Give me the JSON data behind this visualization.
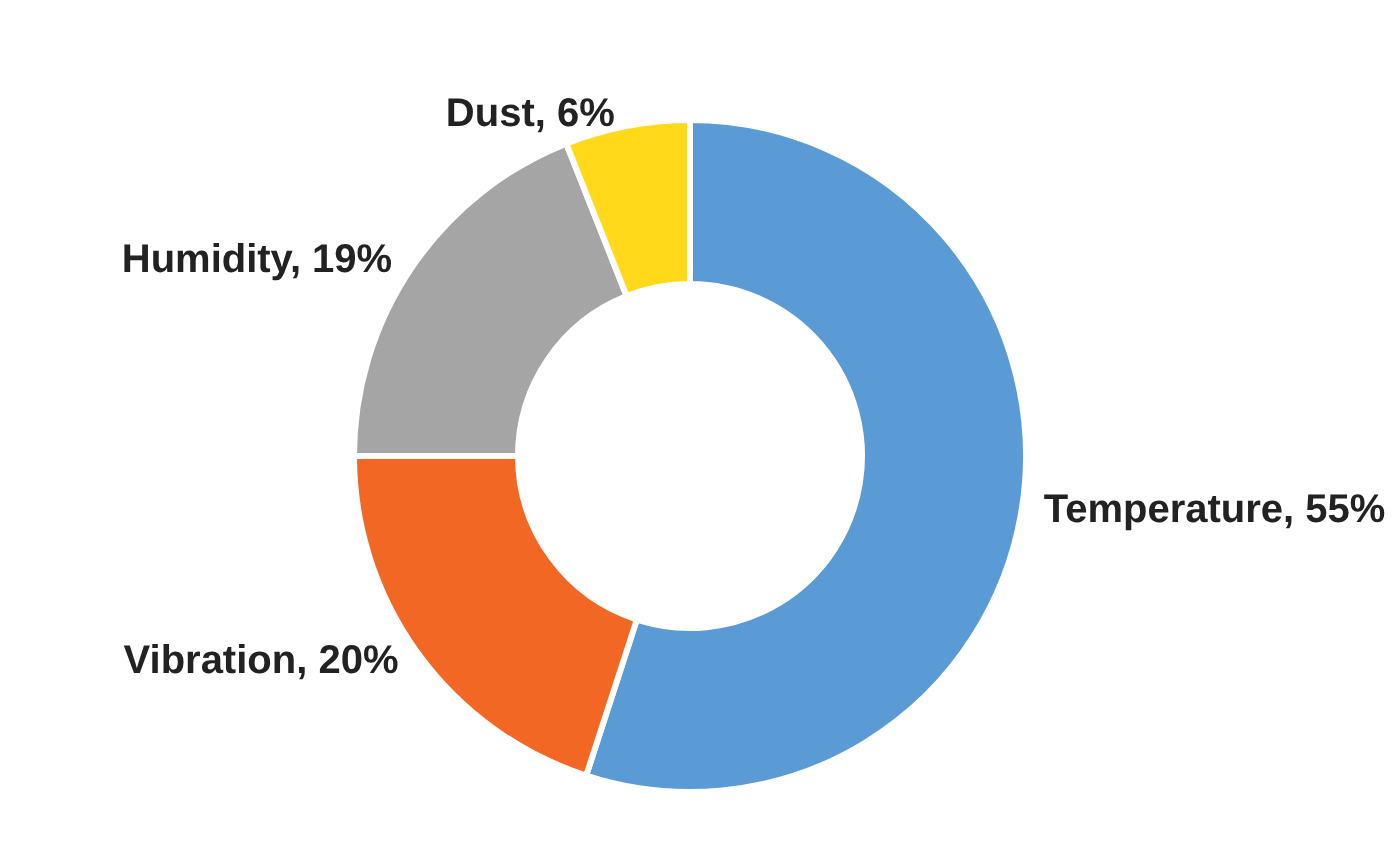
{
  "chart_data": {
    "type": "donut",
    "categories": [
      "Temperature",
      "Vibration",
      "Humidity",
      "Dust"
    ],
    "values": [
      55,
      20,
      19,
      6
    ],
    "colors": [
      "#5b9bd5",
      "#f26724",
      "#a5a5a5",
      "#ffd91a"
    ],
    "value_labels": [
      "55%",
      "20%",
      "19%",
      "6%"
    ],
    "legend": false
  }
}
